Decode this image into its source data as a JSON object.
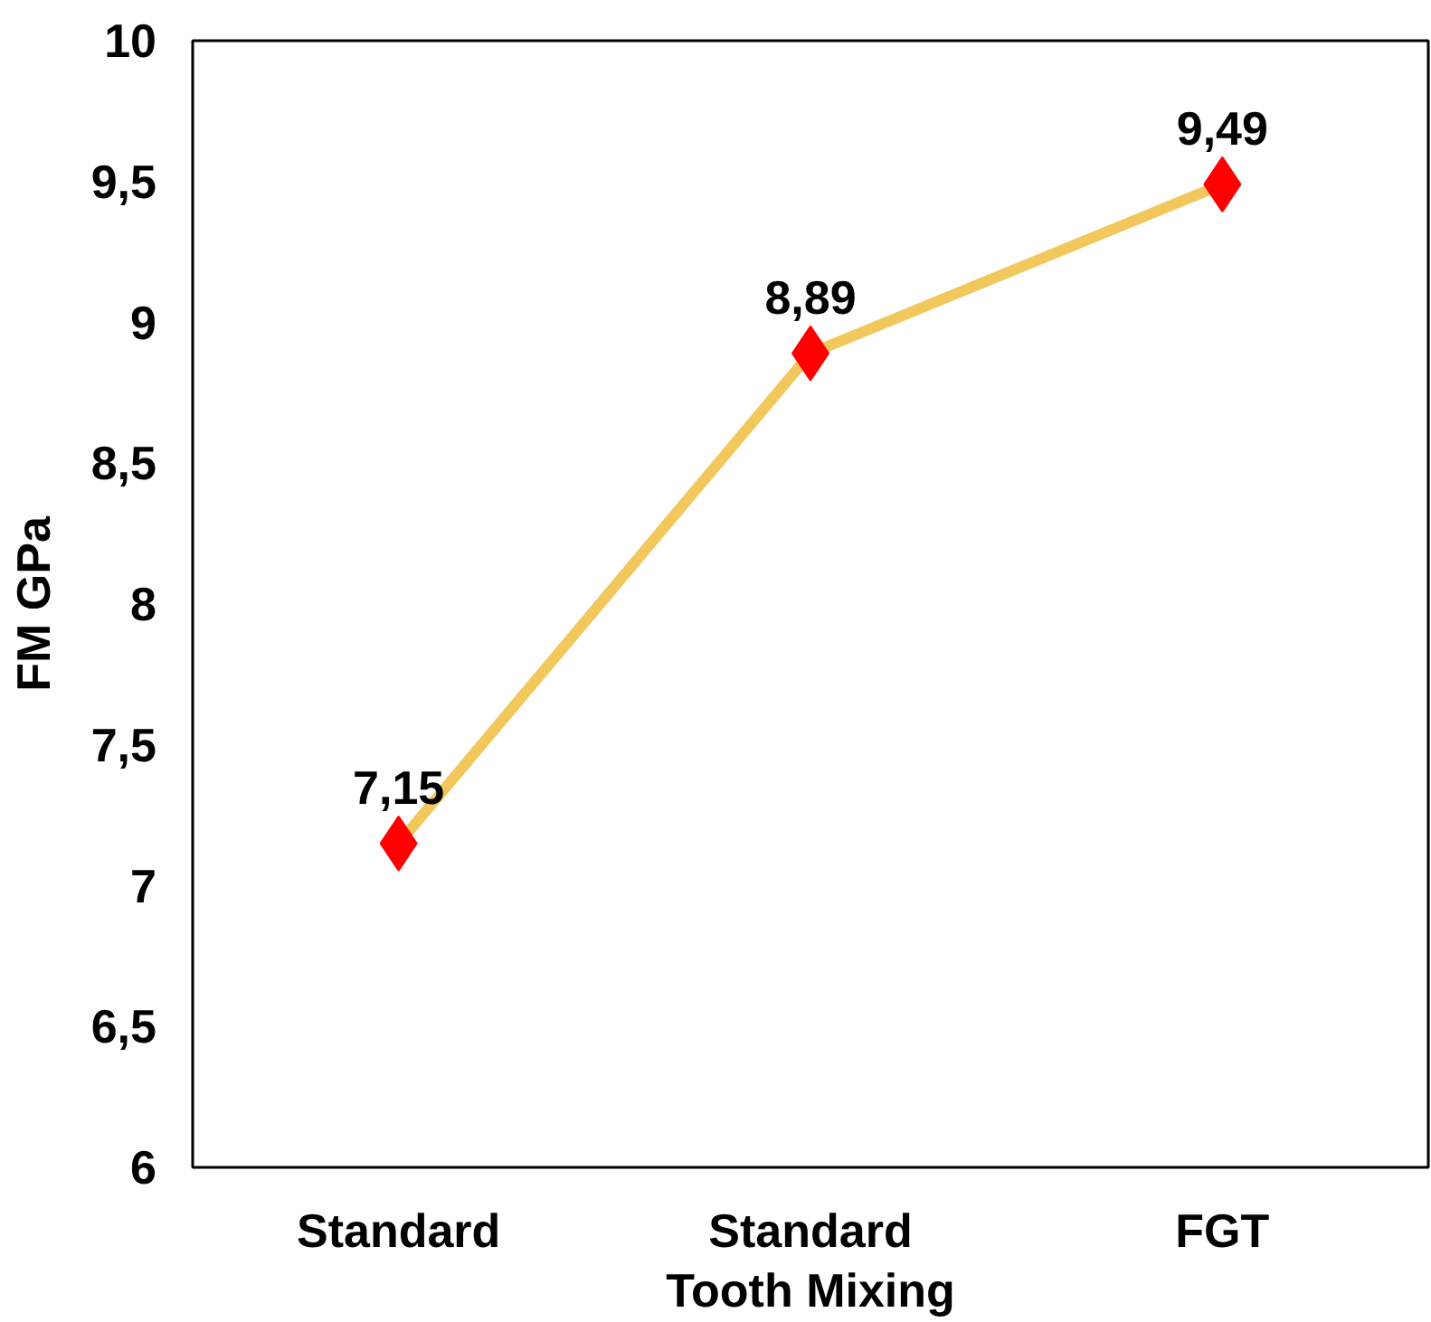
{
  "chart_data": {
    "type": "line",
    "xlabel": "Tooth Mixing",
    "ylabel": "FM GPa",
    "categories": [
      "Standard",
      "Standard",
      "FGT"
    ],
    "series": [
      {
        "color": "#f2c75c",
        "colors": [
          "#ff0000",
          "#ff0000",
          "#ff0000"
        ],
        "values": [
          7.15,
          8.89,
          9.49
        ],
        "value_labels": [
          "7,15",
          "8,89",
          "9,49"
        ]
      }
    ],
    "ylim": [
      6,
      10
    ],
    "yticks": [
      6,
      {
        "value": 6.5,
        "label": "6,5"
      },
      7,
      {
        "value": 7.5,
        "label": "7,5"
      },
      8,
      {
        "value": 8.5,
        "label": "8,5"
      },
      9,
      {
        "value": 9.5,
        "label": "9,5"
      },
      10
    ],
    "marker": "diamond",
    "grid": false
  }
}
